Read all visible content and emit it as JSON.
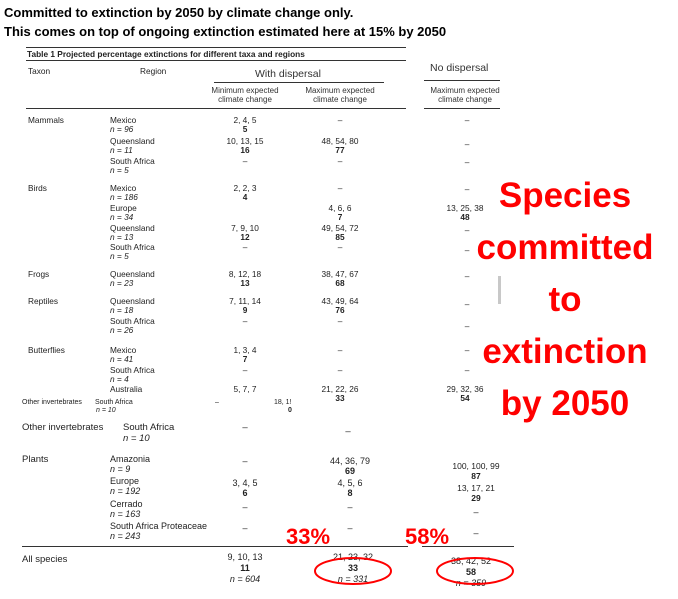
{
  "heading": {
    "line1": "Committed to extinction by 2050 by climate change only.",
    "line2": "This comes on top of ongoing extinction  estimated here at 15% by 2050"
  },
  "table": {
    "title": "Table 1 Projected percentage extinctions for different taxa and regions",
    "col_taxon": "Taxon",
    "col_region": "Region",
    "with_dispersal": "With dispersal",
    "no_dispersal": "No dispersal",
    "min_change": "Minimum expected climate change",
    "max_change": "Maximum expected climate change",
    "max_change_nd": "Maximum expected climate change",
    "taxa": [
      "Mammals",
      "Birds",
      "Frogs",
      "Reptiles",
      "Butterflies",
      "Other invertebrates",
      "Plants",
      "All species"
    ],
    "regions": [
      {
        "name": "Mexico",
        "n": "n = 96",
        "min": "2, 4, 5",
        "min_b": "5",
        "max": "–",
        "max_b": "",
        "nd": "–",
        "nd_b": ""
      },
      {
        "name": "Queensland",
        "n": "n = 11",
        "min": "10, 13, 15",
        "min_b": "16",
        "max": "48, 54, 80",
        "max_b": "77",
        "nd": "–",
        "nd_b": ""
      },
      {
        "name": "South Africa",
        "n": "n = 5",
        "min": "–",
        "min_b": "",
        "max": "–",
        "max_b": "",
        "nd": "–",
        "nd_b": ""
      },
      {
        "name": "Mexico",
        "n": "n = 186",
        "min": "2, 2, 3",
        "min_b": "4",
        "max": "–",
        "max_b": "",
        "nd": "–",
        "nd_b": ""
      },
      {
        "name": "Europe",
        "n": "n = 34",
        "min": "",
        "min_b": "",
        "max": "4, 6, 6",
        "max_b": "7",
        "nd": "13, 25, 38",
        "nd_b": "48"
      },
      {
        "name": "Queensland",
        "n": "n = 13",
        "min": "7, 9, 10",
        "min_b": "12",
        "max": "49, 54, 72",
        "max_b": "85",
        "nd": "–",
        "nd_b": ""
      },
      {
        "name": "South Africa",
        "n": "n = 5",
        "min": "–",
        "min_b": "",
        "max": "–",
        "max_b": "",
        "nd": "–",
        "nd_b": ""
      },
      {
        "name": "Queensland",
        "n": "n = 23",
        "min": "8, 12, 18",
        "min_b": "13",
        "max": "38, 47, 67",
        "max_b": "68",
        "nd": "–",
        "nd_b": ""
      },
      {
        "name": "Queensland",
        "n": "n = 18",
        "min": "7, 11, 14",
        "min_b": "9",
        "max": "43, 49, 64",
        "max_b": "76",
        "nd": "–",
        "nd_b": ""
      },
      {
        "name": "South Africa",
        "n": "n = 26",
        "min": "–",
        "min_b": "",
        "max": "–",
        "max_b": "",
        "nd": "–",
        "nd_b": ""
      },
      {
        "name": "Mexico",
        "n": "n = 41",
        "min": "1, 3, 4",
        "min_b": "7",
        "max": "–",
        "max_b": "",
        "nd": "–",
        "nd_b": ""
      },
      {
        "name": "South Africa",
        "n": "n = 4",
        "min": "–",
        "min_b": "",
        "max": "–",
        "max_b": "",
        "nd": "–",
        "nd_b": ""
      },
      {
        "name": "Australia",
        "n": "",
        "min": "5, 7, 7",
        "min_b": "",
        "max": "21, 22, 26",
        "max_b": "33",
        "nd": "29, 32, 36",
        "nd_b": "54"
      }
    ],
    "other_inv_small": {
      "taxon": "Other invertebrates",
      "region": "South Africa",
      "n": "n = 10",
      "min": "–",
      "frag": "18, 1!",
      "frag_b": "0"
    },
    "other_inv": {
      "region": "South Africa",
      "n": "n = 10",
      "min": "–",
      "max": "–"
    },
    "plants": [
      {
        "name": "Amazonia",
        "n": "n = 9",
        "min": "–",
        "max": "44, 36, 79",
        "max_b": "69",
        "nd": "100, 100, 99",
        "nd_b": "87"
      },
      {
        "name": "Europe",
        "n": "n = 192",
        "min": "3, 4, 5",
        "min_b": "6",
        "max": "4, 5, 6",
        "max_b": "8",
        "nd": "13, 17, 21",
        "nd_b": "29"
      },
      {
        "name": "Cerrado",
        "n": "n = 163",
        "min": "–",
        "max": "–",
        "nd": "–"
      },
      {
        "name": "South Africa Proteaceae",
        "n": "n = 243",
        "min": "–",
        "max": "–",
        "nd": "–"
      }
    ],
    "all_species": {
      "min": "9, 10, 13",
      "min_b": "11",
      "min_n": "n = 604",
      "max": "21, 23, 32",
      "max_b": "33",
      "max_n": "n = 331",
      "nd": "38, 42, 52",
      "nd_b": "58",
      "nd_n": "n = 359"
    }
  },
  "callout": {
    "lines": [
      "Species",
      "committed",
      "to",
      "extinction",
      "by 2050"
    ],
    "pct_with": "33%",
    "pct_without": "58%",
    "color": "#ff0000"
  }
}
